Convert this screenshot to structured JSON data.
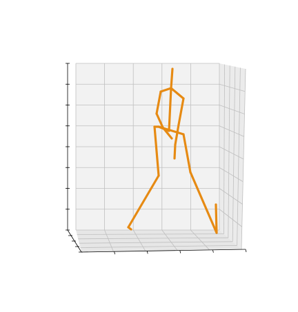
{
  "chart_data": {
    "type": "3d-line",
    "title": "",
    "xlabel": "",
    "ylabel": "",
    "zlabel": "",
    "grid": true,
    "tick_labels_visible": false,
    "series_color": "#e68a13",
    "pane_color": "#f2f2f2",
    "grid_color": "#bfbfbf",
    "axis_color": "#000000",
    "skeleton": {
      "pelvis": [
        230,
        184
      ],
      "l_hip": [
        224,
        184
      ],
      "l_knee": [
        230,
        255
      ],
      "l_ankle": [
        186,
        330
      ],
      "l_toe": [
        190,
        333
      ],
      "r_hip": [
        266,
        195
      ],
      "r_knee": [
        276,
        250
      ],
      "r_ankle": [
        314,
        338
      ],
      "r_toe": [
        313,
        297
      ],
      "spine": [
        245,
        190
      ],
      "neck": [
        248,
        128
      ],
      "head_top": [
        250,
        100
      ],
      "l_shoulder": [
        233,
        133
      ],
      "l_elbow": [
        227,
        165
      ],
      "l_wrist": [
        236,
        185
      ],
      "l_hand": [
        249,
        201
      ],
      "r_shoulder": [
        266,
        143
      ],
      "r_elbow": [
        259,
        181
      ],
      "r_wrist": [
        254,
        210
      ],
      "r_hand": [
        253,
        230
      ]
    },
    "bones": [
      [
        "pelvis",
        "l_hip"
      ],
      [
        "l_hip",
        "l_knee"
      ],
      [
        "l_knee",
        "l_ankle"
      ],
      [
        "l_ankle",
        "l_toe"
      ],
      [
        "pelvis",
        "r_hip"
      ],
      [
        "r_hip",
        "r_knee"
      ],
      [
        "r_knee",
        "r_ankle"
      ],
      [
        "r_ankle",
        "r_toe"
      ],
      [
        "pelvis",
        "spine"
      ],
      [
        "spine",
        "neck"
      ],
      [
        "neck",
        "head_top"
      ],
      [
        "neck",
        "l_shoulder"
      ],
      [
        "l_shoulder",
        "l_elbow"
      ],
      [
        "l_elbow",
        "l_wrist"
      ],
      [
        "l_wrist",
        "l_hand"
      ],
      [
        "neck",
        "r_shoulder"
      ],
      [
        "r_shoulder",
        "r_elbow"
      ],
      [
        "r_elbow",
        "r_wrist"
      ],
      [
        "r_wrist",
        "r_hand"
      ]
    ]
  }
}
